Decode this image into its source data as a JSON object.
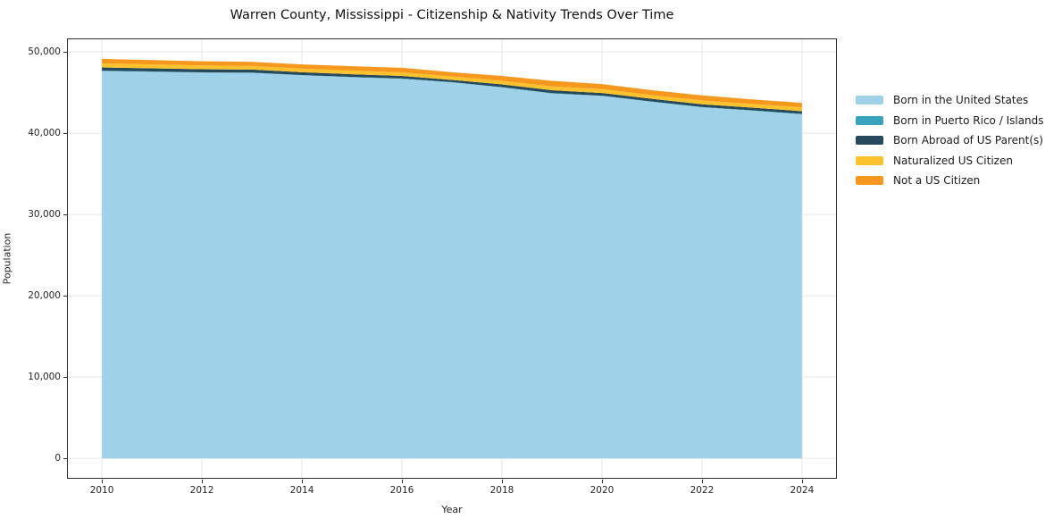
{
  "title": "Warren County, Mississippi - Citizenship & Nativity Trends Over Time",
  "chart_data": {
    "type": "area",
    "stacked": true,
    "title": "Warren County, Mississippi - Citizenship & Nativity Trends Over Time",
    "xlabel": "Year",
    "ylabel": "Population",
    "x": [
      2010,
      2011,
      2012,
      2013,
      2014,
      2015,
      2016,
      2017,
      2018,
      2019,
      2020,
      2021,
      2022,
      2023,
      2024
    ],
    "series": [
      {
        "name": "Born in the United States",
        "color": "#9fd2e8",
        "values": [
          47650,
          47550,
          47450,
          47420,
          47120,
          46880,
          46690,
          46250,
          45630,
          44890,
          44580,
          43860,
          43190,
          42770,
          42330
        ]
      },
      {
        "name": "Born in Puerto Rico / Islands",
        "color": "#3aa2bd",
        "values": [
          40,
          40,
          40,
          40,
          40,
          40,
          40,
          40,
          40,
          40,
          40,
          40,
          40,
          40,
          40
        ]
      },
      {
        "name": "Born Abroad of US Parent(s)",
        "color": "#264a5b",
        "values": [
          400,
          390,
          380,
          360,
          340,
          330,
          320,
          260,
          330,
          360,
          330,
          330,
          330,
          330,
          330
        ]
      },
      {
        "name": "Naturalized US Citizen",
        "color": "#fcc22d",
        "values": [
          500,
          480,
          460,
          450,
          440,
          450,
          440,
          430,
          440,
          470,
          470,
          450,
          470,
          460,
          480
        ]
      },
      {
        "name": "Not a US Citizen",
        "color": "#f6981e",
        "values": [
          550,
          540,
          520,
          510,
          520,
          540,
          550,
          520,
          600,
          680,
          630,
          610,
          620,
          560,
          550
        ]
      }
    ],
    "xlim": [
      2009.32,
      2024.68
    ],
    "ylim": [
      -2400,
      51550
    ],
    "xticks": [
      2010,
      2012,
      2014,
      2016,
      2018,
      2020,
      2022,
      2024
    ],
    "yticks": [
      0,
      10000,
      20000,
      30000,
      40000,
      50000
    ],
    "ytick_labels": [
      "0",
      "10,000",
      "20,000",
      "30,000",
      "40,000",
      "50,000"
    ],
    "grid": true,
    "grid_color": "#e6e6e6",
    "legend_position": "right of plot"
  }
}
